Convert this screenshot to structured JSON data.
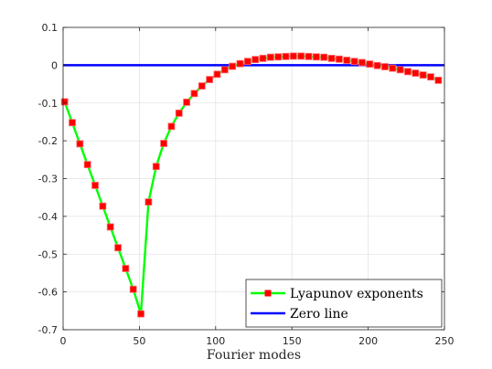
{
  "chart_data": {
    "type": "line",
    "title": "",
    "xlabel": "Fourier modes",
    "ylabel": "",
    "xlim": [
      0,
      250
    ],
    "ylim": [
      -0.7,
      0.1
    ],
    "xticks": [
      0,
      50,
      100,
      150,
      200,
      250
    ],
    "yticks": [
      0.1,
      0,
      -0.1,
      -0.2,
      -0.3,
      -0.4,
      -0.5,
      -0.6,
      -0.7
    ],
    "xtick_labels": [
      "0",
      "50",
      "100",
      "150",
      "200",
      "250"
    ],
    "ytick_labels": [
      "0.1",
      "0",
      "-0.1",
      "-0.2",
      "-0.3",
      "-0.4",
      "-0.5",
      "-0.6",
      "-0.7"
    ],
    "grid": true,
    "legend_position": "bottom-right",
    "series": [
      {
        "name": "Lyapunov exponents",
        "line_color": "#00ff00",
        "marker": "square",
        "marker_color": "#ff0000",
        "x": [
          1,
          6,
          11,
          16,
          21,
          26,
          31,
          36,
          41,
          46,
          51,
          56,
          61,
          66,
          71,
          76,
          81,
          86,
          91,
          96,
          101,
          106,
          111,
          116,
          121,
          126,
          131,
          136,
          141,
          146,
          151,
          156,
          161,
          166,
          171,
          176,
          181,
          186,
          191,
          196,
          201,
          206,
          211,
          216,
          221,
          226,
          231,
          236,
          241,
          246
        ],
        "y": [
          -0.097,
          -0.152,
          -0.208,
          -0.263,
          -0.318,
          -0.373,
          -0.428,
          -0.483,
          -0.538,
          -0.593,
          -0.658,
          -0.362,
          -0.268,
          -0.207,
          -0.162,
          -0.127,
          -0.098,
          -0.075,
          -0.055,
          -0.038,
          -0.024,
          -0.012,
          -0.003,
          0.004,
          0.01,
          0.015,
          0.018,
          0.021,
          0.022,
          0.023,
          0.024,
          0.024,
          0.023,
          0.022,
          0.021,
          0.018,
          0.016,
          0.013,
          0.01,
          0.007,
          0.003,
          -0.001,
          -0.004,
          -0.008,
          -0.012,
          -0.017,
          -0.021,
          -0.026,
          -0.031,
          -0.04
        ]
      },
      {
        "name": "Zero line",
        "line_color": "#0000ff",
        "x": [
          0,
          250
        ],
        "y": [
          0,
          0
        ]
      }
    ]
  }
}
